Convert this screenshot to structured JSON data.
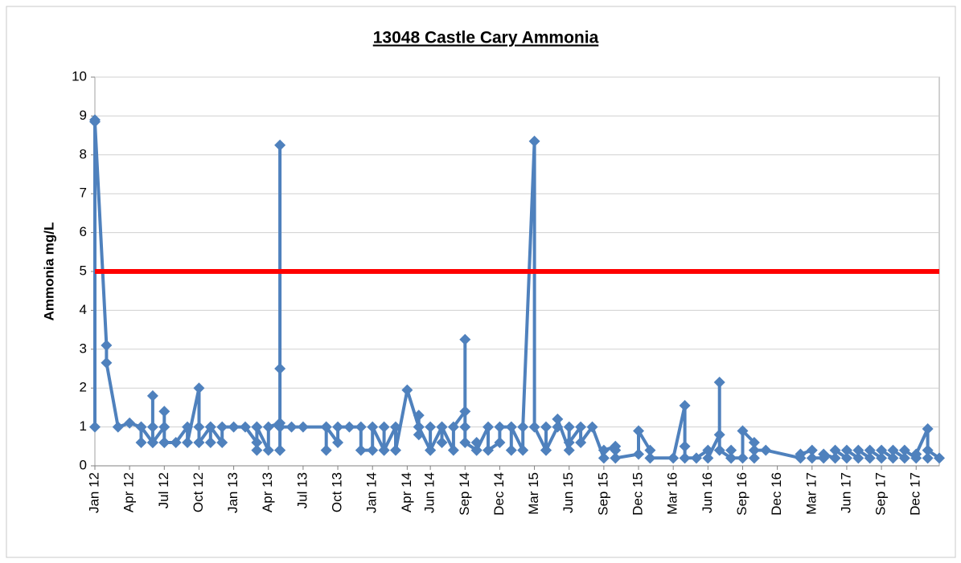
{
  "chart_data": {
    "type": "line",
    "title": "13048 Castle Cary Ammonia",
    "y_label": "Ammonia  mg/L",
    "xlim": [
      "2012-01",
      "2018-02"
    ],
    "xticks": [
      {
        "value": "2012-01",
        "label": "Jan 12"
      },
      {
        "value": "2012-04",
        "label": "Apr 12"
      },
      {
        "value": "2012-07",
        "label": "Jul 12"
      },
      {
        "value": "2012-10",
        "label": "Oct 12"
      },
      {
        "value": "2013-01",
        "label": "Jan 13"
      },
      {
        "value": "2013-04",
        "label": "Apr 13"
      },
      {
        "value": "2013-07",
        "label": "Jul 13"
      },
      {
        "value": "2013-10",
        "label": "Oct 13"
      },
      {
        "value": "2014-01",
        "label": "Jan 14"
      },
      {
        "value": "2014-04",
        "label": "Apr 14"
      },
      {
        "value": "2014-06",
        "label": "Jun 14"
      },
      {
        "value": "2014-09",
        "label": "Sep 14"
      },
      {
        "value": "2014-12",
        "label": "Dec 14"
      },
      {
        "value": "2015-03",
        "label": "Mar 15"
      },
      {
        "value": "2015-06",
        "label": "Jun 15"
      },
      {
        "value": "2015-09",
        "label": "Sep 15"
      },
      {
        "value": "2015-12",
        "label": "Dec 15"
      },
      {
        "value": "2016-03",
        "label": "Mar 16"
      },
      {
        "value": "2016-06",
        "label": "Jun 16"
      },
      {
        "value": "2016-09",
        "label": "Sep 16"
      },
      {
        "value": "2016-12",
        "label": "Dec 16"
      },
      {
        "value": "2017-03",
        "label": "Mar 17"
      },
      {
        "value": "2017-06",
        "label": "Jun 17"
      },
      {
        "value": "2017-09",
        "label": "Sep 17"
      },
      {
        "value": "2017-12",
        "label": "Dec 17"
      }
    ],
    "ylim": [
      0,
      10
    ],
    "yticks": [
      0,
      1,
      2,
      3,
      4,
      5,
      6,
      7,
      8,
      9,
      10
    ],
    "grid": true,
    "reference_line": {
      "value": 5,
      "color": "#ff0000"
    },
    "x": [
      "2012-01",
      "2012-01",
      "2012-01",
      "2012-02",
      "2012-02",
      "2012-03",
      "2012-04",
      "2012-05",
      "2012-05",
      "2012-05",
      "2012-06",
      "2012-06",
      "2012-06",
      "2012-06",
      "2012-06",
      "2012-07",
      "2012-07",
      "2012-07",
      "2012-07",
      "2012-08",
      "2012-09",
      "2012-09",
      "2012-10",
      "2012-10",
      "2012-10",
      "2012-10",
      "2012-11",
      "2012-11",
      "2012-11",
      "2012-12",
      "2012-12",
      "2013-01",
      "2013-02",
      "2013-03",
      "2013-03",
      "2013-03",
      "2013-03",
      "2013-04",
      "2013-04",
      "2013-05",
      "2013-05",
      "2013-05",
      "2013-05",
      "2013-05",
      "2013-05",
      "2013-05",
      "2013-06",
      "2013-07",
      "2013-09",
      "2013-09",
      "2013-09",
      "2013-10",
      "2013-10",
      "2013-11",
      "2013-12",
      "2013-12",
      "2014-01",
      "2014-01",
      "2014-02",
      "2014-02",
      "2014-02",
      "2014-03",
      "2014-03",
      "2014-04",
      "2014-05",
      "2014-05",
      "2014-05",
      "2014-05",
      "2014-06",
      "2014-06",
      "2014-06",
      "2014-07",
      "2014-07",
      "2014-07",
      "2014-08",
      "2014-08",
      "2014-09",
      "2014-09",
      "2014-09",
      "2014-09",
      "2014-10",
      "2014-10",
      "2014-10",
      "2014-11",
      "2014-11",
      "2014-12",
      "2014-12",
      "2015-01",
      "2015-01",
      "2015-01",
      "2015-02",
      "2015-02",
      "2015-03",
      "2015-03",
      "2015-04",
      "2015-04",
      "2015-04",
      "2015-05",
      "2015-05",
      "2015-06",
      "2015-06",
      "2015-06",
      "2015-07",
      "2015-07",
      "2015-08",
      "2015-09",
      "2015-09",
      "2015-10",
      "2015-10",
      "2015-10",
      "2015-12",
      "2015-12",
      "2016-01",
      "2016-01",
      "2016-03",
      "2016-04",
      "2016-04",
      "2016-04",
      "2016-05",
      "2016-06",
      "2016-06",
      "2016-07",
      "2016-07",
      "2016-07",
      "2016-08",
      "2016-08",
      "2016-08",
      "2016-09",
      "2016-09",
      "2016-10",
      "2016-10",
      "2016-10",
      "2016-11",
      "2017-02",
      "2017-02",
      "2017-03",
      "2017-03",
      "2017-04",
      "2017-04",
      "2017-05",
      "2017-05",
      "2017-06",
      "2017-06",
      "2017-07",
      "2017-07",
      "2017-08",
      "2017-08",
      "2017-09",
      "2017-09",
      "2017-10",
      "2017-10",
      "2017-11",
      "2017-11",
      "2017-12",
      "2017-12",
      "2018-01",
      "2018-01",
      "2018-01",
      "2018-02"
    ],
    "series": [
      {
        "name": "Ammonia",
        "color": "#4f81bd",
        "values": [
          1,
          8.9,
          8.85,
          3.1,
          2.65,
          1,
          1.1,
          1,
          0.6,
          1,
          0.6,
          1.8,
          0.6,
          1,
          0.6,
          1,
          0.6,
          1.4,
          0.6,
          0.6,
          1,
          0.6,
          2,
          0.6,
          1,
          0.6,
          1,
          0.6,
          1,
          0.6,
          1,
          1,
          1,
          0.6,
          1,
          0.4,
          1,
          0.4,
          1,
          1.1,
          2.5,
          8.25,
          0.4,
          1,
          0.4,
          1,
          1,
          1,
          1,
          0.4,
          1,
          0.6,
          1,
          1,
          1,
          0.4,
          0.4,
          1,
          0.4,
          1,
          0.4,
          1,
          0.4,
          1.95,
          1,
          0.8,
          1.3,
          1,
          0.4,
          1,
          0.4,
          1,
          0.6,
          1,
          0.4,
          1,
          1.4,
          3.25,
          1,
          0.6,
          0.4,
          0.6,
          0.4,
          1,
          0.4,
          0.6,
          1,
          1,
          0.4,
          1,
          0.4,
          1,
          8.35,
          1,
          0.4,
          1,
          0.4,
          1,
          1.2,
          0.4,
          1,
          0.6,
          1,
          0.6,
          1,
          0.2,
          0.4,
          0.5,
          0.4,
          0.2,
          0.3,
          0.9,
          0.4,
          0.2,
          0.2,
          1.55,
          0.5,
          0.2,
          0.2,
          0.4,
          0.2,
          0.8,
          2.15,
          0.4,
          0.2,
          0.4,
          0.2,
          0.2,
          0.9,
          0.6,
          0.2,
          0.4,
          0.4,
          0.2,
          0.3,
          0.4,
          0.2,
          0.2,
          0.3,
          0.2,
          0.4,
          0.2,
          0.4,
          0.2,
          0.4,
          0.2,
          0.4,
          0.2,
          0.4,
          0.2,
          0.4,
          0.2,
          0.4,
          0.2,
          0.3,
          0.95,
          0.2,
          0.4,
          0.2
        ]
      }
    ]
  }
}
